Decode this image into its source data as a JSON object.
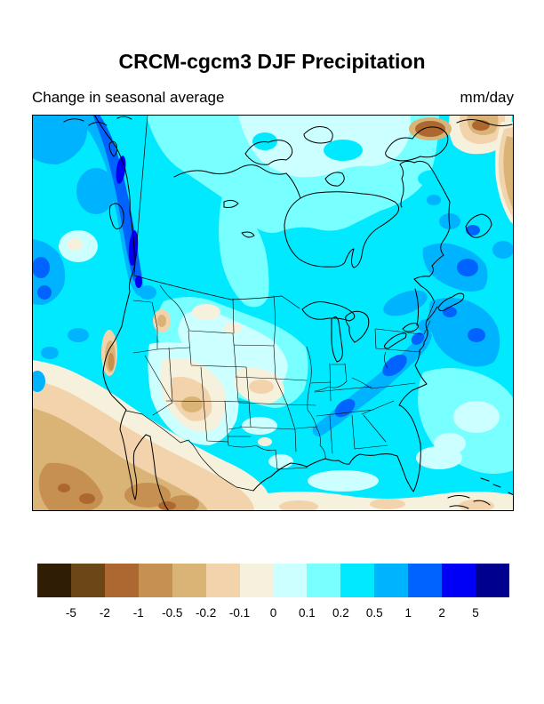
{
  "figure": {
    "title": "CRCM-cgcm3 DJF Precipitation",
    "subtitle": "Change in seasonal average",
    "units": "mm/day"
  },
  "chart_data": {
    "type": "heatmap",
    "title": "CRCM-cgcm3 DJF Precipitation",
    "subtitle": "Change in seasonal average",
    "units": "mm/day",
    "map_region": "North America",
    "model": "CRCM-cgcm3",
    "season": "DJF",
    "variable": "precipitation change in seasonal average",
    "colorbar": {
      "orientation": "horizontal",
      "levels": [
        -5,
        -2,
        -1,
        -0.5,
        -0.2,
        -0.1,
        0,
        0.1,
        0.2,
        0.5,
        1,
        2,
        5
      ],
      "tick_labels": [
        "-5",
        "-2",
        "-1",
        "-0.5",
        "-0.2",
        "-0.1",
        "0",
        "0.1",
        "0.2",
        "0.5",
        "1",
        "2",
        "5"
      ],
      "colors": [
        "#2f1e05",
        "#6b4617",
        "#ad6831",
        "#c69150",
        "#dab377",
        "#f2d3ab",
        "#f6f1dc",
        "#ccffff",
        "#78ffff",
        "#00e9ff",
        "#00b3ff",
        "#0063ff",
        "#0000f6",
        "#00008e"
      ]
    },
    "map_features": [
      "coastlines",
      "us-state-borders",
      "us-canada-border",
      "us-mexico-border",
      "great-lakes",
      "hudson-bay",
      "arctic-islands"
    ]
  }
}
